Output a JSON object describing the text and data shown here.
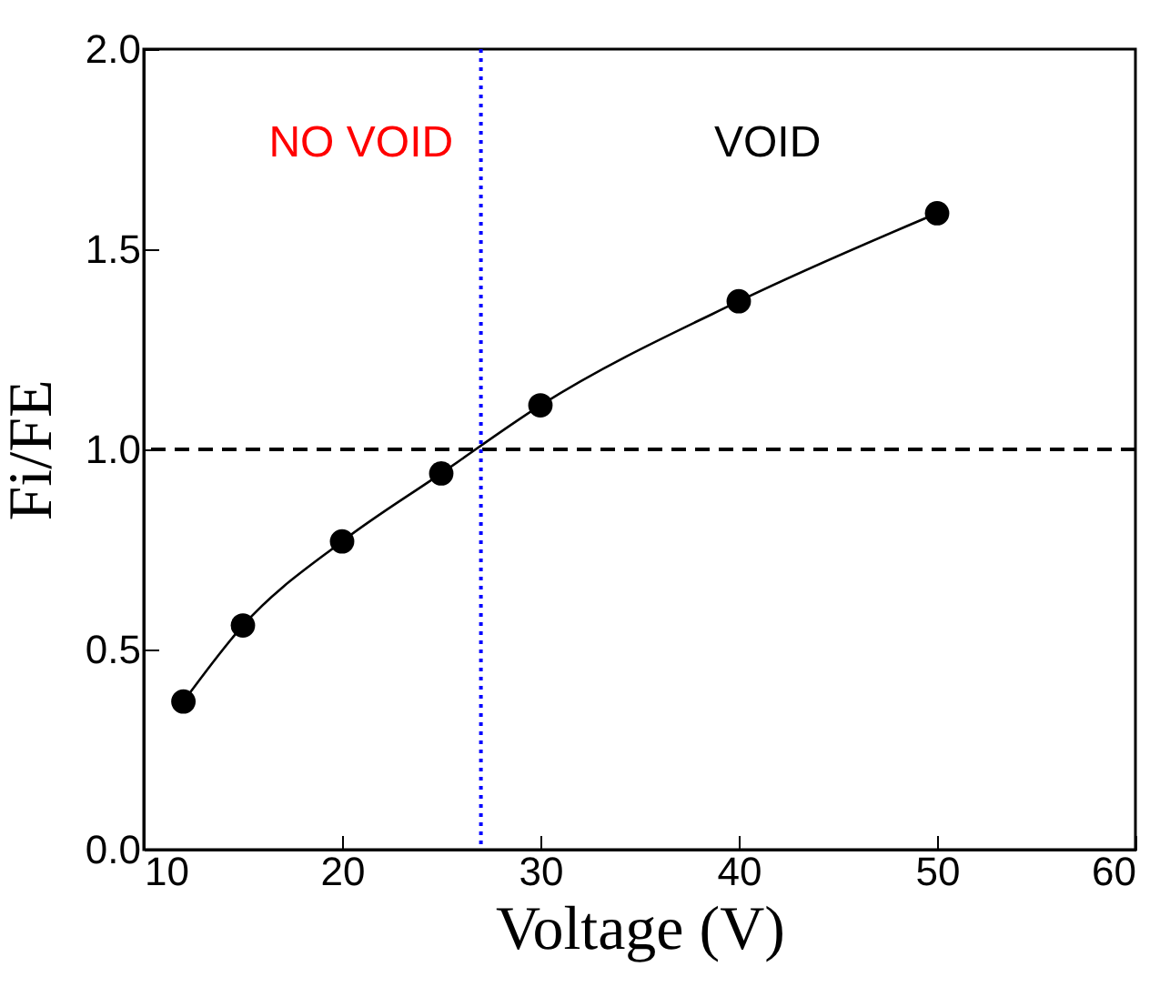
{
  "chart_data": {
    "type": "scatter",
    "xlabel": "Voltage (V)",
    "ylabel": "Fi/FE",
    "x": [
      12,
      15,
      20,
      25,
      30,
      40,
      50
    ],
    "series": [
      {
        "color": "#000000",
        "marker": "circle",
        "values": [
          0.37,
          0.56,
          0.77,
          0.94,
          1.11,
          1.37,
          1.59
        ]
      },
      {
        "type": "line",
        "color": "#000000",
        "line_style": "solid",
        "x": [
          12,
          15,
          20,
          25,
          30,
          40,
          50
        ],
        "values": [
          0.37,
          0.56,
          0.77,
          0.94,
          1.11,
          1.37,
          1.59
        ]
      }
    ],
    "xlim": [
      10,
      60
    ],
    "xticks": [
      10,
      20,
      30,
      40,
      50,
      60
    ],
    "ylim": [
      0,
      2
    ],
    "yticks": [
      {
        "value": 0,
        "label": "0.0"
      },
      {
        "value": 0.5,
        "label": "0.5"
      },
      {
        "value": 1,
        "label": "1.0"
      },
      {
        "value": 1.5,
        "label": "1.5"
      },
      {
        "value": 2,
        "label": "2.0"
      }
    ],
    "ref_lines": [
      {
        "axis": "y",
        "value": 1,
        "color": "#000000",
        "line_style": "dashed"
      },
      {
        "axis": "x",
        "value": 27,
        "color": "#0000ff",
        "line_style": "dotted"
      }
    ],
    "annotations": [
      "NO VOID",
      "VOID"
    ],
    "grid": false
  }
}
